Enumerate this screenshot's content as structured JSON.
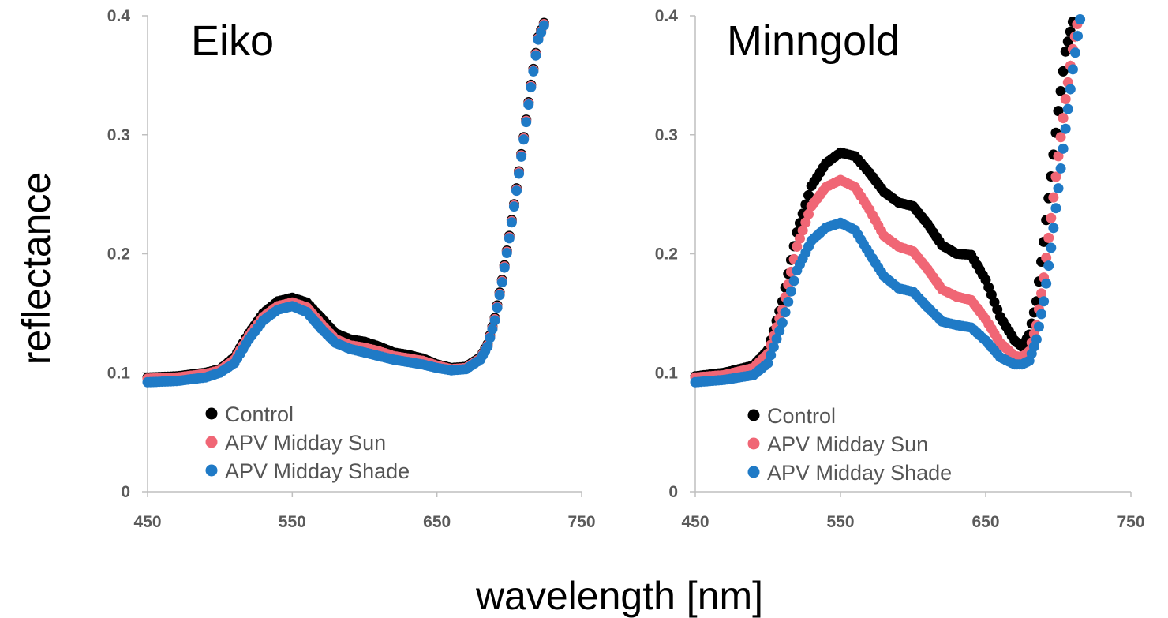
{
  "colors": {
    "Control": "#000000",
    "APV Midday Sun": "#f06675",
    "APV Midday Shade": "#1f7ac6",
    "axis": "#bfbfbf",
    "tick_text": "#5a5a5a",
    "legend_text": "#555555",
    "error_bar": "#c8c8c8"
  },
  "shared": {
    "xlabel": "wavelength [nm]",
    "ylabel": "reflectance"
  },
  "chart_data": [
    {
      "type": "scatter",
      "title": "Eiko",
      "xlim": [
        450,
        750
      ],
      "ylim": [
        0,
        0.4
      ],
      "x_ticks": [
        450,
        550,
        650,
        750
      ],
      "y_ticks": [
        0,
        0.1,
        0.2,
        0.3,
        0.4
      ],
      "x_tick_labels": [
        "450",
        "550",
        "650",
        "750"
      ],
      "y_tick_labels": [
        "0",
        "0.1",
        "0.2",
        "0.3",
        "0.4"
      ],
      "legend": {
        "position": "bottom-left",
        "entries": [
          "Control",
          "APV Midday Sun",
          "APV Midday Shade"
        ]
      },
      "series": [
        {
          "name": "Control",
          "x": [
            450,
            470,
            490,
            500,
            510,
            520,
            530,
            540,
            550,
            560,
            570,
            580,
            590,
            600,
            610,
            620,
            630,
            640,
            650,
            660,
            670,
            680,
            685,
            690,
            695,
            700,
            705,
            710,
            715,
            720,
            724
          ],
          "y": [
            0.096,
            0.097,
            0.1,
            0.103,
            0.113,
            0.133,
            0.15,
            0.16,
            0.163,
            0.159,
            0.146,
            0.133,
            0.128,
            0.126,
            0.122,
            0.117,
            0.115,
            0.112,
            0.107,
            0.104,
            0.105,
            0.113,
            0.124,
            0.146,
            0.178,
            0.215,
            0.255,
            0.298,
            0.342,
            0.382,
            0.394
          ]
        },
        {
          "name": "APV Midday Sun",
          "x": [
            450,
            470,
            490,
            500,
            510,
            520,
            530,
            540,
            550,
            560,
            570,
            580,
            590,
            600,
            610,
            620,
            630,
            640,
            650,
            660,
            670,
            680,
            685,
            690,
            695,
            700,
            705,
            710,
            715,
            720,
            724
          ],
          "y": [
            0.095,
            0.096,
            0.099,
            0.102,
            0.111,
            0.131,
            0.147,
            0.156,
            0.159,
            0.155,
            0.141,
            0.128,
            0.123,
            0.121,
            0.118,
            0.114,
            0.112,
            0.11,
            0.106,
            0.103,
            0.104,
            0.112,
            0.123,
            0.145,
            0.177,
            0.214,
            0.254,
            0.297,
            0.341,
            0.381,
            0.393
          ]
        },
        {
          "name": "APV Midday Shade",
          "x": [
            450,
            470,
            490,
            500,
            510,
            520,
            530,
            540,
            550,
            560,
            570,
            580,
            590,
            600,
            610,
            620,
            630,
            640,
            650,
            660,
            670,
            680,
            685,
            690,
            695,
            700,
            705,
            710,
            715,
            720,
            724
          ],
          "y": [
            0.092,
            0.093,
            0.096,
            0.1,
            0.108,
            0.128,
            0.144,
            0.153,
            0.156,
            0.151,
            0.137,
            0.125,
            0.12,
            0.117,
            0.114,
            0.111,
            0.109,
            0.107,
            0.104,
            0.102,
            0.103,
            0.111,
            0.122,
            0.144,
            0.176,
            0.213,
            0.253,
            0.296,
            0.34,
            0.38,
            0.392
          ]
        }
      ]
    },
    {
      "type": "scatter",
      "title": "Minngold",
      "xlim": [
        450,
        750
      ],
      "ylim": [
        0,
        0.4
      ],
      "x_ticks": [
        450,
        550,
        650,
        750
      ],
      "y_ticks": [
        0,
        0.1,
        0.2,
        0.3,
        0.4
      ],
      "x_tick_labels": [
        "450",
        "550",
        "650",
        "750"
      ],
      "y_tick_labels": [
        "0",
        "0.1",
        "0.2",
        "0.3",
        "0.4"
      ],
      "legend": {
        "position": "bottom-left",
        "entries": [
          "Control",
          "APV Midday Sun",
          "APV Midday Shade"
        ]
      },
      "series": [
        {
          "name": "Control",
          "x": [
            450,
            470,
            490,
            500,
            510,
            520,
            530,
            540,
            550,
            560,
            570,
            580,
            590,
            600,
            610,
            620,
            630,
            640,
            650,
            660,
            670,
            675,
            680,
            685,
            690,
            695,
            700,
            705,
            710
          ],
          "y": [
            0.097,
            0.1,
            0.106,
            0.119,
            0.16,
            0.218,
            0.257,
            0.276,
            0.285,
            0.282,
            0.268,
            0.252,
            0.243,
            0.24,
            0.225,
            0.207,
            0.2,
            0.199,
            0.178,
            0.147,
            0.127,
            0.122,
            0.132,
            0.16,
            0.21,
            0.265,
            0.32,
            0.37,
            0.395
          ]
        },
        {
          "name": "APV Midday Sun",
          "x": [
            450,
            470,
            490,
            500,
            510,
            520,
            530,
            540,
            550,
            560,
            570,
            580,
            590,
            600,
            610,
            620,
            630,
            640,
            650,
            660,
            670,
            675,
            680,
            685,
            690,
            695,
            700,
            705,
            710,
            713
          ],
          "y": [
            0.096,
            0.098,
            0.104,
            0.116,
            0.153,
            0.206,
            0.24,
            0.256,
            0.262,
            0.256,
            0.237,
            0.215,
            0.206,
            0.202,
            0.187,
            0.17,
            0.164,
            0.161,
            0.145,
            0.125,
            0.114,
            0.113,
            0.118,
            0.14,
            0.18,
            0.23,
            0.282,
            0.33,
            0.372,
            0.393
          ]
        },
        {
          "name": "APV Midday Shade",
          "x": [
            450,
            470,
            490,
            500,
            510,
            520,
            530,
            540,
            550,
            560,
            570,
            580,
            590,
            600,
            610,
            620,
            630,
            640,
            650,
            660,
            670,
            675,
            680,
            685,
            690,
            695,
            700,
            705,
            710,
            715
          ],
          "y": [
            0.092,
            0.094,
            0.098,
            0.108,
            0.142,
            0.186,
            0.211,
            0.222,
            0.226,
            0.22,
            0.2,
            0.181,
            0.171,
            0.168,
            0.155,
            0.143,
            0.14,
            0.138,
            0.127,
            0.113,
            0.107,
            0.107,
            0.11,
            0.128,
            0.16,
            0.205,
            0.255,
            0.305,
            0.355,
            0.397
          ]
        }
      ]
    }
  ]
}
